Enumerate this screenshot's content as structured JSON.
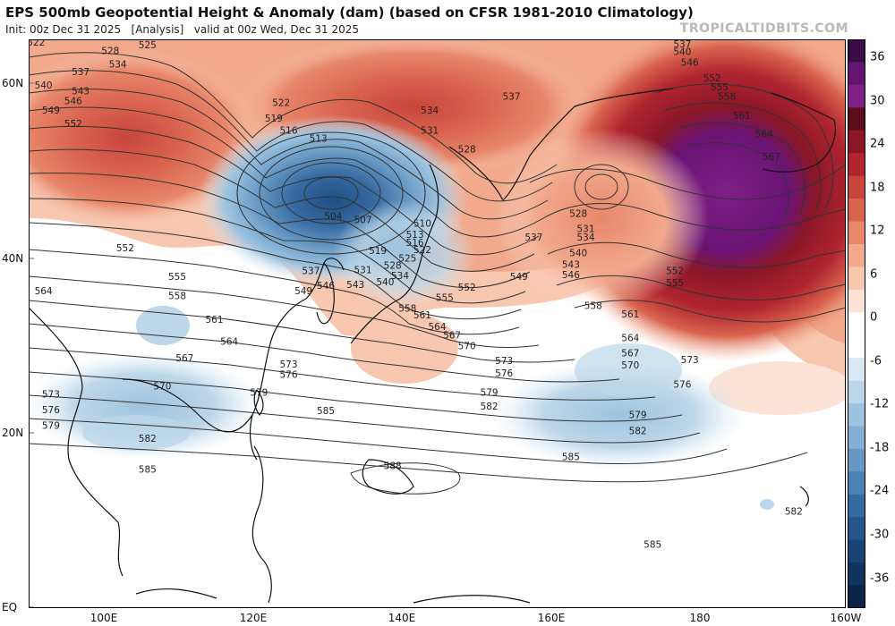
{
  "header": {
    "title": "EPS 500mb Geopotential Height & Anomaly (dam) (based on CFSR 1981-2010 Climatology)",
    "subtitle": "Init: 00z Dec 31 2025   [Analysis]   valid at 00z Wed, Dec 31 2025",
    "credit": "TROPICALTIDBITS.COM"
  },
  "axes": {
    "lat_labels": [
      "60N",
      "40N",
      "20N",
      "EQ"
    ],
    "lon_labels": [
      "100E",
      "120E",
      "140E",
      "160E",
      "180",
      "160W"
    ]
  },
  "colorbar": {
    "labels": [
      "36",
      "30",
      "24",
      "18",
      "12",
      "6",
      "0",
      "-6",
      "-12",
      "-18",
      "-24",
      "-30",
      "-36"
    ],
    "colors": [
      "#3a0c44",
      "#641470",
      "#7e1f86",
      "#5b0d1a",
      "#8b1726",
      "#b0252f",
      "#c8453c",
      "#d9644e",
      "#e8876a",
      "#f2a98c",
      "#f8c7b0",
      "#fce3d6",
      "#ffffff",
      "#ffffff",
      "#d8e9f3",
      "#bcd7ea",
      "#9ec3df",
      "#82afd3",
      "#6698c4",
      "#4b80b3",
      "#356aa0",
      "#24558b",
      "#184374",
      "#10335f",
      "#0b2448"
    ]
  },
  "chart_data": {
    "type": "contour-map",
    "title": "EPS 500mb Geopotential Height & Anomaly (dam) (based on CFSR 1981-2010 Climatology)",
    "contour_labels": [
      {
        "value": "522",
        "lon": 91,
        "lat": 64.6
      },
      {
        "value": "528",
        "lon": 101,
        "lat": 63.6
      },
      {
        "value": "525",
        "lon": 106,
        "lat": 64.3
      },
      {
        "value": "534",
        "lon": 102,
        "lat": 62.1
      },
      {
        "value": "537",
        "lon": 97,
        "lat": 61.2
      },
      {
        "value": "540",
        "lon": 92,
        "lat": 59.7
      },
      {
        "value": "543",
        "lon": 97,
        "lat": 59.0
      },
      {
        "value": "546",
        "lon": 96,
        "lat": 57.9
      },
      {
        "value": "549",
        "lon": 93,
        "lat": 56.8
      },
      {
        "value": "552",
        "lon": 96,
        "lat": 55.3
      },
      {
        "value": "522",
        "lon": 124,
        "lat": 57.7
      },
      {
        "value": "519",
        "lon": 123,
        "lat": 55.9
      },
      {
        "value": "516",
        "lon": 125,
        "lat": 54.5
      },
      {
        "value": "513",
        "lon": 129,
        "lat": 53.6
      },
      {
        "value": "504",
        "lon": 131,
        "lat": 44.7
      },
      {
        "value": "507",
        "lon": 135,
        "lat": 44.3
      },
      {
        "value": "510",
        "lon": 143,
        "lat": 43.9
      },
      {
        "value": "513",
        "lon": 142,
        "lat": 42.6
      },
      {
        "value": "516",
        "lon": 142,
        "lat": 41.7
      },
      {
        "value": "519",
        "lon": 137,
        "lat": 40.8
      },
      {
        "value": "522",
        "lon": 143,
        "lat": 40.9
      },
      {
        "value": "525",
        "lon": 141,
        "lat": 39.9
      },
      {
        "value": "528",
        "lon": 139,
        "lat": 39.1
      },
      {
        "value": "531",
        "lon": 135,
        "lat": 38.6
      },
      {
        "value": "534",
        "lon": 140,
        "lat": 37.9
      },
      {
        "value": "537",
        "lon": 128,
        "lat": 38.5
      },
      {
        "value": "540",
        "lon": 138,
        "lat": 37.2
      },
      {
        "value": "543",
        "lon": 134,
        "lat": 36.9
      },
      {
        "value": "546",
        "lon": 130,
        "lat": 36.8
      },
      {
        "value": "549",
        "lon": 127,
        "lat": 36.2
      },
      {
        "value": "552",
        "lon": 103,
        "lat": 41.1
      },
      {
        "value": "555",
        "lon": 110,
        "lat": 37.8
      },
      {
        "value": "558",
        "lon": 110,
        "lat": 35.6
      },
      {
        "value": "561",
        "lon": 115,
        "lat": 32.9
      },
      {
        "value": "564",
        "lon": 92,
        "lat": 36.2
      },
      {
        "value": "564",
        "lon": 117,
        "lat": 30.4
      },
      {
        "value": "567",
        "lon": 111,
        "lat": 28.5
      },
      {
        "value": "570",
        "lon": 108,
        "lat": 25.3
      },
      {
        "value": "573",
        "lon": 93,
        "lat": 24.4
      },
      {
        "value": "576",
        "lon": 93,
        "lat": 22.6
      },
      {
        "value": "579",
        "lon": 93,
        "lat": 20.8
      },
      {
        "value": "582",
        "lon": 106,
        "lat": 19.3
      },
      {
        "value": "585",
        "lon": 106,
        "lat": 15.8
      },
      {
        "value": "573",
        "lon": 125,
        "lat": 27.8
      },
      {
        "value": "576",
        "lon": 125,
        "lat": 26.6
      },
      {
        "value": "579",
        "lon": 121,
        "lat": 24.6
      },
      {
        "value": "585",
        "lon": 130,
        "lat": 22.5
      },
      {
        "value": "534",
        "lon": 144,
        "lat": 56.8
      },
      {
        "value": "531",
        "lon": 144,
        "lat": 54.5
      },
      {
        "value": "528",
        "lon": 149,
        "lat": 52.4
      },
      {
        "value": "537",
        "lon": 155,
        "lat": 58.4
      },
      {
        "value": "537",
        "lon": 178,
        "lat": 64.4
      },
      {
        "value": "540",
        "lon": 178,
        "lat": 63.5
      },
      {
        "value": "546",
        "lon": 179,
        "lat": 62.3
      },
      {
        "value": "552",
        "lon": 182,
        "lat": 60.5
      },
      {
        "value": "555",
        "lon": 183,
        "lat": 59.5
      },
      {
        "value": "558",
        "lon": 184,
        "lat": 58.4
      },
      {
        "value": "561",
        "lon": 186,
        "lat": 56.2
      },
      {
        "value": "564",
        "lon": 189,
        "lat": 54.1
      },
      {
        "value": "567",
        "lon": 190,
        "lat": 51.5
      },
      {
        "value": "528",
        "lon": 164,
        "lat": 45.0
      },
      {
        "value": "531",
        "lon": 165,
        "lat": 43.3
      },
      {
        "value": "534",
        "lon": 165,
        "lat": 42.3
      },
      {
        "value": "537",
        "lon": 158,
        "lat": 42.3
      },
      {
        "value": "540",
        "lon": 164,
        "lat": 40.5
      },
      {
        "value": "543",
        "lon": 163,
        "lat": 39.2
      },
      {
        "value": "546",
        "lon": 163,
        "lat": 38.0
      },
      {
        "value": "549",
        "lon": 156,
        "lat": 37.8
      },
      {
        "value": "552",
        "lon": 149,
        "lat": 36.6
      },
      {
        "value": "555",
        "lon": 146,
        "lat": 35.4
      },
      {
        "value": "558",
        "lon": 141,
        "lat": 34.2
      },
      {
        "value": "561",
        "lon": 143,
        "lat": 33.4
      },
      {
        "value": "564",
        "lon": 145,
        "lat": 32.1
      },
      {
        "value": "567",
        "lon": 147,
        "lat": 31.1
      },
      {
        "value": "570",
        "lon": 149,
        "lat": 29.9
      },
      {
        "value": "573",
        "lon": 154,
        "lat": 28.2
      },
      {
        "value": "576",
        "lon": 154,
        "lat": 26.8
      },
      {
        "value": "579",
        "lon": 152,
        "lat": 24.6
      },
      {
        "value": "582",
        "lon": 152,
        "lat": 23.0
      },
      {
        "value": "552",
        "lon": 177,
        "lat": 38.5
      },
      {
        "value": "555",
        "lon": 177,
        "lat": 37.1
      },
      {
        "value": "558",
        "lon": 166,
        "lat": 34.5
      },
      {
        "value": "561",
        "lon": 171,
        "lat": 33.5
      },
      {
        "value": "564",
        "lon": 171,
        "lat": 30.8
      },
      {
        "value": "567",
        "lon": 171,
        "lat": 29.1
      },
      {
        "value": "570",
        "lon": 171,
        "lat": 27.7
      },
      {
        "value": "573",
        "lon": 179,
        "lat": 28.3
      },
      {
        "value": "576",
        "lon": 178,
        "lat": 25.5
      },
      {
        "value": "579",
        "lon": 172,
        "lat": 22.0
      },
      {
        "value": "582",
        "lon": 172,
        "lat": 20.2
      },
      {
        "value": "585",
        "lon": 163,
        "lat": 17.2
      },
      {
        "value": "588",
        "lon": 139,
        "lat": 16.2
      },
      {
        "value": "582",
        "lon": 193,
        "lat": 11.0
      },
      {
        "value": "585",
        "lon": 174,
        "lat": 7.2
      }
    ],
    "anomaly_unit": "dam"
  }
}
